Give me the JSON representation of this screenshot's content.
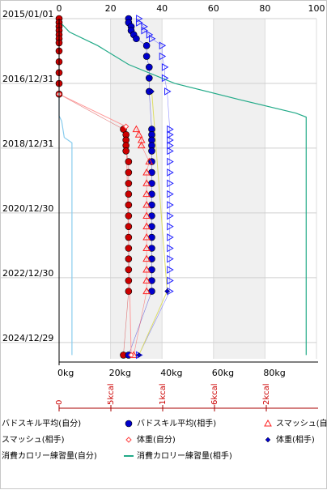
{
  "chart_data": {
    "type": "scatter",
    "orientation": "vertical-time",
    "y_axis": {
      "kind": "date",
      "range": [
        "2015/01/01",
        "2025/07/01"
      ],
      "tick_labels": [
        "2015/01/01",
        "2016/12/31",
        "2018/12/31",
        "2020/12/30",
        "2022/12/30",
        "2024/12/29"
      ]
    },
    "x_axis_top": {
      "range": [
        0,
        100
      ],
      "ticks": [
        "0",
        "20",
        "40",
        "60",
        "80",
        "100"
      ]
    },
    "x_axis_bottom": {
      "range": [
        0,
        100
      ],
      "ticks": [
        "0kg",
        "20kg",
        "40kg",
        "60kg",
        "80kg"
      ]
    },
    "calorie_axis": {
      "ticks": [
        "0",
        "5kcal",
        "1kcal",
        "6kcal",
        "2kcal"
      ]
    },
    "grid": true,
    "legend_position": "bottom",
    "colors": {
      "self_skill": "#cc0000",
      "opp_skill": "#0000cc",
      "smash_self": "#ff2020",
      "smash_opp": "#2020ff",
      "weight_self": "#ff9999",
      "weight_opp": "#dddd66",
      "cal_self": "#88ccee",
      "cal_opp": "#22aa88"
    },
    "series": [
      {
        "name": "バドスキル平均(自分)",
        "marker": "circle-filled",
        "color": "#cc0000",
        "points": [
          {
            "date": "2015/01/01",
            "x": 0
          },
          {
            "date": "2015/02/15",
            "x": 0
          },
          {
            "date": "2015/04/01",
            "x": 0
          },
          {
            "date": "2015/05/15",
            "x": 0
          },
          {
            "date": "2015/07/01",
            "x": 0
          },
          {
            "date": "2015/08/15",
            "x": 0
          },
          {
            "date": "2015/10/01",
            "x": 0
          },
          {
            "date": "2016/01/01",
            "x": 0
          },
          {
            "date": "2016/05/01",
            "x": 0
          },
          {
            "date": "2016/09/01",
            "x": 0
          },
          {
            "date": "2017/01/01",
            "x": 0
          },
          {
            "date": "2017/05/01",
            "x": 0
          },
          {
            "date": "2018/06/01",
            "x": 25
          },
          {
            "date": "2018/08/01",
            "x": 26
          },
          {
            "date": "2018/10/01",
            "x": 26
          },
          {
            "date": "2018/12/01",
            "x": 26
          },
          {
            "date": "2019/02/01",
            "x": 26
          },
          {
            "date": "2019/06/01",
            "x": 27
          },
          {
            "date": "2019/10/01",
            "x": 27
          },
          {
            "date": "2020/02/01",
            "x": 27
          },
          {
            "date": "2020/06/01",
            "x": 27
          },
          {
            "date": "2020/10/01",
            "x": 27
          },
          {
            "date": "2021/02/01",
            "x": 27
          },
          {
            "date": "2021/06/01",
            "x": 27
          },
          {
            "date": "2021/10/01",
            "x": 27
          },
          {
            "date": "2022/02/01",
            "x": 27
          },
          {
            "date": "2022/06/01",
            "x": 27
          },
          {
            "date": "2022/10/01",
            "x": 27
          },
          {
            "date": "2023/02/01",
            "x": 27
          },
          {
            "date": "2023/06/01",
            "x": 27
          },
          {
            "date": "2025/05/20",
            "x": 25
          }
        ]
      },
      {
        "name": "バドスキル平均(相手)",
        "marker": "circle-filled",
        "color": "#0000cc",
        "points": [
          {
            "date": "2015/01/01",
            "x": 27
          },
          {
            "date": "2015/02/15",
            "x": 27
          },
          {
            "date": "2015/04/01",
            "x": 28
          },
          {
            "date": "2015/05/15",
            "x": 28
          },
          {
            "date": "2015/07/01",
            "x": 29
          },
          {
            "date": "2015/08/15",
            "x": 30
          },
          {
            "date": "2015/11/01",
            "x": 34
          },
          {
            "date": "2016/03/01",
            "x": 34
          },
          {
            "date": "2016/07/01",
            "x": 35
          },
          {
            "date": "2016/11/01",
            "x": 35
          },
          {
            "date": "2017/04/01",
            "x": 35
          },
          {
            "date": "2018/06/01",
            "x": 36
          },
          {
            "date": "2018/08/01",
            "x": 36
          },
          {
            "date": "2018/10/01",
            "x": 36
          },
          {
            "date": "2018/12/01",
            "x": 36
          },
          {
            "date": "2019/02/01",
            "x": 36
          },
          {
            "date": "2019/06/01",
            "x": 36
          },
          {
            "date": "2019/10/01",
            "x": 36
          },
          {
            "date": "2020/02/01",
            "x": 36
          },
          {
            "date": "2020/06/01",
            "x": 36
          },
          {
            "date": "2020/10/01",
            "x": 36
          },
          {
            "date": "2021/02/01",
            "x": 36
          },
          {
            "date": "2021/06/01",
            "x": 36
          },
          {
            "date": "2021/10/01",
            "x": 36
          },
          {
            "date": "2022/02/01",
            "x": 36
          },
          {
            "date": "2022/06/01",
            "x": 36
          },
          {
            "date": "2022/10/01",
            "x": 36
          },
          {
            "date": "2023/02/01",
            "x": 36
          },
          {
            "date": "2023/06/01",
            "x": 36
          },
          {
            "date": "2025/05/20",
            "x": 27
          }
        ]
      },
      {
        "name": "スマッシュ(自分)",
        "marker": "triangle-up-open",
        "color": "#ff2020",
        "points": [
          {
            "date": "2018/06/01",
            "x": 30
          },
          {
            "date": "2018/08/01",
            "x": 31
          },
          {
            "date": "2018/10/01",
            "x": 32
          },
          {
            "date": "2018/12/01",
            "x": 32
          },
          {
            "date": "2019/06/01",
            "x": 35
          },
          {
            "date": "2019/10/01",
            "x": 34
          },
          {
            "date": "2020/02/01",
            "x": 34
          },
          {
            "date": "2020/06/01",
            "x": 34
          },
          {
            "date": "2020/10/01",
            "x": 34
          },
          {
            "date": "2021/02/01",
            "x": 34
          },
          {
            "date": "2021/06/01",
            "x": 34
          },
          {
            "date": "2021/10/01",
            "x": 34
          },
          {
            "date": "2022/02/01",
            "x": 34
          },
          {
            "date": "2022/06/01",
            "x": 34
          },
          {
            "date": "2022/10/01",
            "x": 34
          },
          {
            "date": "2023/02/01",
            "x": 34
          },
          {
            "date": "2023/06/01",
            "x": 34
          },
          {
            "date": "2025/05/20",
            "x": 29
          }
        ]
      },
      {
        "name": "スマッシュ(相手)",
        "marker": "triangle-right-open",
        "color": "#2020ff",
        "points": [
          {
            "date": "2015/01/01",
            "x": 31
          },
          {
            "date": "2015/02/15",
            "x": 31
          },
          {
            "date": "2015/04/01",
            "x": 33
          },
          {
            "date": "2015/05/15",
            "x": 33
          },
          {
            "date": "2015/07/01",
            "x": 35
          },
          {
            "date": "2015/08/15",
            "x": 36
          },
          {
            "date": "2015/11/01",
            "x": 40
          },
          {
            "date": "2016/03/01",
            "x": 40
          },
          {
            "date": "2016/07/01",
            "x": 41
          },
          {
            "date": "2016/11/01",
            "x": 41
          },
          {
            "date": "2017/04/01",
            "x": 42
          },
          {
            "date": "2018/06/01",
            "x": 43
          },
          {
            "date": "2018/08/01",
            "x": 43
          },
          {
            "date": "2018/10/01",
            "x": 43
          },
          {
            "date": "2018/12/01",
            "x": 43
          },
          {
            "date": "2019/02/01",
            "x": 43
          },
          {
            "date": "2019/06/01",
            "x": 43
          },
          {
            "date": "2019/10/01",
            "x": 43
          },
          {
            "date": "2020/02/01",
            "x": 43
          },
          {
            "date": "2020/06/01",
            "x": 43
          },
          {
            "date": "2020/10/01",
            "x": 43
          },
          {
            "date": "2021/02/01",
            "x": 43
          },
          {
            "date": "2021/06/01",
            "x": 43
          },
          {
            "date": "2021/10/01",
            "x": 43
          },
          {
            "date": "2022/02/01",
            "x": 43
          },
          {
            "date": "2022/06/01",
            "x": 43
          },
          {
            "date": "2022/10/01",
            "x": 43
          },
          {
            "date": "2023/02/01",
            "x": 43
          },
          {
            "date": "2023/06/01",
            "x": 43
          },
          {
            "date": "2025/05/20",
            "x": 31
          }
        ]
      },
      {
        "name": "体重(自分)",
        "marker": "diamond-open",
        "color": "#ff4444",
        "line_color": "#ff9999",
        "points": [
          {
            "date": "2017/05/01",
            "x": 0
          },
          {
            "date": "2018/05/01",
            "x": 26
          },
          {
            "date": "2025/05/20",
            "x": 28
          }
        ]
      },
      {
        "name": "体重(相手)",
        "marker": "diamond-filled",
        "color": "#0000cc",
        "line_color": "#dddd66",
        "points": [
          {
            "date": "2017/04/01",
            "x": 36
          },
          {
            "date": "2023/06/01",
            "x": 42
          },
          {
            "date": "2025/05/20",
            "x": 31
          }
        ]
      },
      {
        "name": "消費カロリー練習量(自分)",
        "marker": "line",
        "color": "#88ccee",
        "points": [
          {
            "date": "2017/05/01",
            "x": 0
          },
          {
            "date": "2017/09/01",
            "x": 0
          },
          {
            "date": "2018/01/01",
            "x": 0
          },
          {
            "date": "2018/03/01",
            "x": 1
          },
          {
            "date": "2018/09/01",
            "x": 2
          },
          {
            "date": "2018/11/01",
            "x": 5
          },
          {
            "date": "2018/12/15",
            "x": 5
          },
          {
            "date": "2025/05/20",
            "x": 5
          }
        ]
      },
      {
        "name": "消費カロリー練習量(相手)",
        "marker": "line",
        "color": "#22aa88",
        "points": [
          {
            "date": "2015/01/01",
            "x": 0
          },
          {
            "date": "2015/03/01",
            "x": 1
          },
          {
            "date": "2015/06/01",
            "x": 4
          },
          {
            "date": "2015/11/01",
            "x": 15
          },
          {
            "date": "2016/06/01",
            "x": 27
          },
          {
            "date": "2017/01/01",
            "x": 45
          },
          {
            "date": "2017/07/01",
            "x": 70
          },
          {
            "date": "2017/12/01",
            "x": 92
          },
          {
            "date": "2018/01/15",
            "x": 96
          },
          {
            "date": "2018/03/01",
            "x": 96
          },
          {
            "date": "2025/05/20",
            "x": 96
          }
        ]
      }
    ]
  }
}
